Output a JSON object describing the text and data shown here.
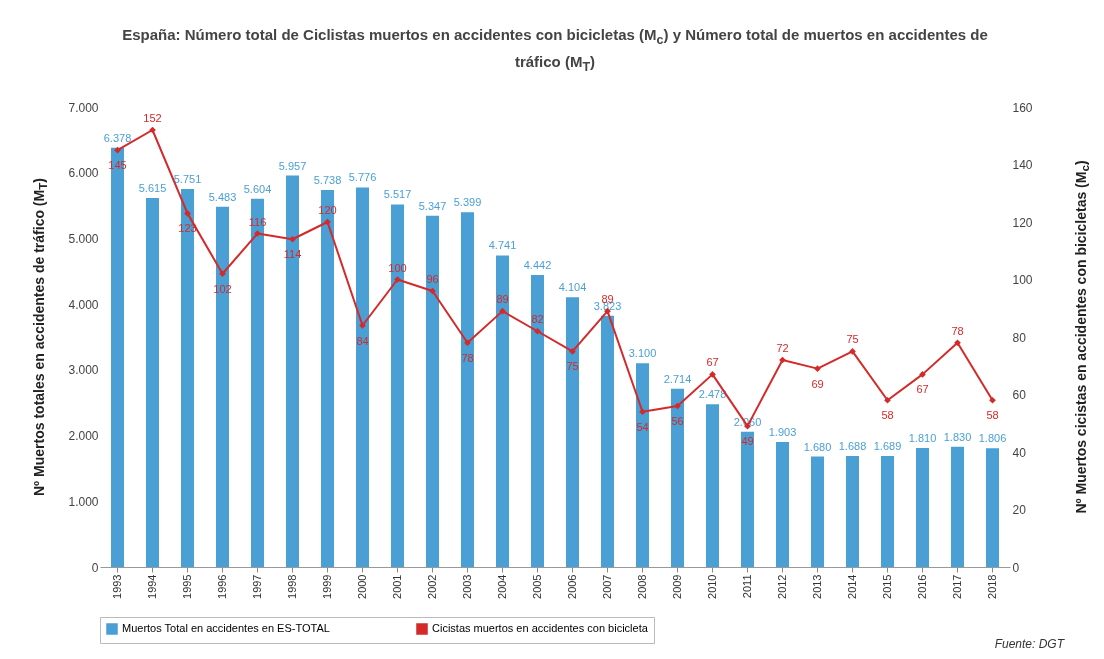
{
  "chart_data": {
    "type": "bar",
    "title": "España: Número total de Ciclistas muertos en accidentes con bicicletas (M$_{c}$) y Número total de muertos en accidentes de tráfico (M$_{T}$)",
    "ylabel": "Nº Muertos totales en accidentes de tráfico (M$_{T}$)",
    "y2label": "Nº Muertos cicistas en accidentes con bicicletas (M$_{c}$)",
    "categories": [
      "1993",
      "1994",
      "1995",
      "1996",
      "1997",
      "1998",
      "1999",
      "2000",
      "2001",
      "2002",
      "2003",
      "2004",
      "2005",
      "2006",
      "2007",
      "2008",
      "2009",
      "2010",
      "2011",
      "2012",
      "2013",
      "2014",
      "2015",
      "2016",
      "2017",
      "2018"
    ],
    "series": [
      {
        "name": "Muertos Total en accidentes en  ES-TOTAL",
        "color": "#4a9fd5",
        "values": [
          6378,
          5615,
          5751,
          5483,
          5604,
          5957,
          5738,
          5776,
          5517,
          5347,
          5399,
          4741,
          4442,
          4104,
          3823,
          3100,
          2714,
          2478,
          2060,
          1903,
          1680,
          1688,
          1689,
          1810,
          1830,
          1806
        ],
        "value_labels": [
          "6.378",
          "5.615",
          "5.751",
          "5.483",
          "5.604",
          "5.957",
          "5.738",
          "5.776",
          "5.517",
          "5.347",
          "5.399",
          "4.741",
          "4.442",
          "4.104",
          "3.823",
          "3.100",
          "2.714",
          "2.478",
          "2.060",
          "1.903",
          "1.680",
          "1.688",
          "1.689",
          "1.810",
          "1.830",
          "1.806"
        ]
      },
      {
        "name": "Cicistas muertos en accidentes con bicicleta",
        "type": "line",
        "axis": "y2",
        "color": "#d42a2a",
        "values": [
          145,
          152,
          123,
          102,
          116,
          114,
          120,
          84,
          100,
          96,
          78,
          89,
          82,
          75,
          89,
          54,
          56,
          67,
          49,
          72,
          69,
          75,
          58,
          67,
          78,
          58
        ],
        "value_labels": [
          "145",
          "152",
          "123",
          "102",
          "116",
          "114",
          "120",
          "84",
          "100",
          "96",
          "78",
          "89",
          "82",
          "75",
          "89",
          "54",
          "56",
          "67",
          "49",
          "72",
          "69",
          "75",
          "58",
          "67",
          "78",
          "58"
        ]
      }
    ],
    "ylim": [
      0,
      7000
    ],
    "yticks": [
      0,
      {
        "value": 1000,
        "label": "1.000"
      },
      {
        "value": 2000,
        "label": "2.000"
      },
      {
        "value": 3000,
        "label": "3.000"
      },
      {
        "value": 4000,
        "label": "4.000"
      },
      {
        "value": 5000,
        "label": "5.000"
      },
      {
        "value": 6000,
        "label": "6.000"
      },
      {
        "value": 7000,
        "label": "7.000"
      }
    ],
    "y2lim": [
      0,
      160
    ],
    "y2ticks": [
      0,
      20,
      40,
      60,
      80,
      100,
      120,
      140,
      160
    ],
    "marker": "diamond",
    "legend": "bottom",
    "annotations": [
      "Fuente: DGT"
    ]
  }
}
